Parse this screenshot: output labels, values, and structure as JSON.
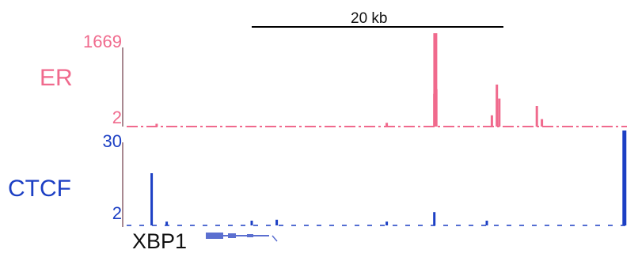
{
  "scale": {
    "label": "20 kb"
  },
  "tracks": [
    {
      "name": "ER",
      "color": "#f06a8d",
      "axis_max": "1669",
      "axis_min": "2",
      "signal": [
        {
          "pos": 0.0,
          "value": 0.02
        },
        {
          "pos": 0.06,
          "value": 0.03
        },
        {
          "pos": 0.08,
          "value": 0.02
        },
        {
          "pos": 0.52,
          "value": 0.04
        },
        {
          "pos": 0.615,
          "value": 0.35
        },
        {
          "pos": 0.617,
          "value": 1.0
        },
        {
          "pos": 0.619,
          "value": 0.4
        },
        {
          "pos": 0.73,
          "value": 0.12
        },
        {
          "pos": 0.74,
          "value": 0.45
        },
        {
          "pos": 0.745,
          "value": 0.3
        },
        {
          "pos": 0.82,
          "value": 0.22
        },
        {
          "pos": 0.83,
          "value": 0.08
        },
        {
          "pos": 0.995,
          "value": 0.02
        }
      ]
    },
    {
      "name": "CTCF",
      "color": "#1c3fc4",
      "axis_max": "30",
      "axis_min": "2",
      "signal": [
        {
          "pos": 0.0,
          "value": 0.02
        },
        {
          "pos": 0.05,
          "value": 0.55
        },
        {
          "pos": 0.08,
          "value": 0.04
        },
        {
          "pos": 0.25,
          "value": 0.05
        },
        {
          "pos": 0.3,
          "value": 0.06
        },
        {
          "pos": 0.52,
          "value": 0.04
        },
        {
          "pos": 0.615,
          "value": 0.14
        },
        {
          "pos": 0.72,
          "value": 0.05
        },
        {
          "pos": 0.995,
          "value": 1.0
        }
      ]
    }
  ],
  "gene": {
    "name": "XBP1"
  }
}
